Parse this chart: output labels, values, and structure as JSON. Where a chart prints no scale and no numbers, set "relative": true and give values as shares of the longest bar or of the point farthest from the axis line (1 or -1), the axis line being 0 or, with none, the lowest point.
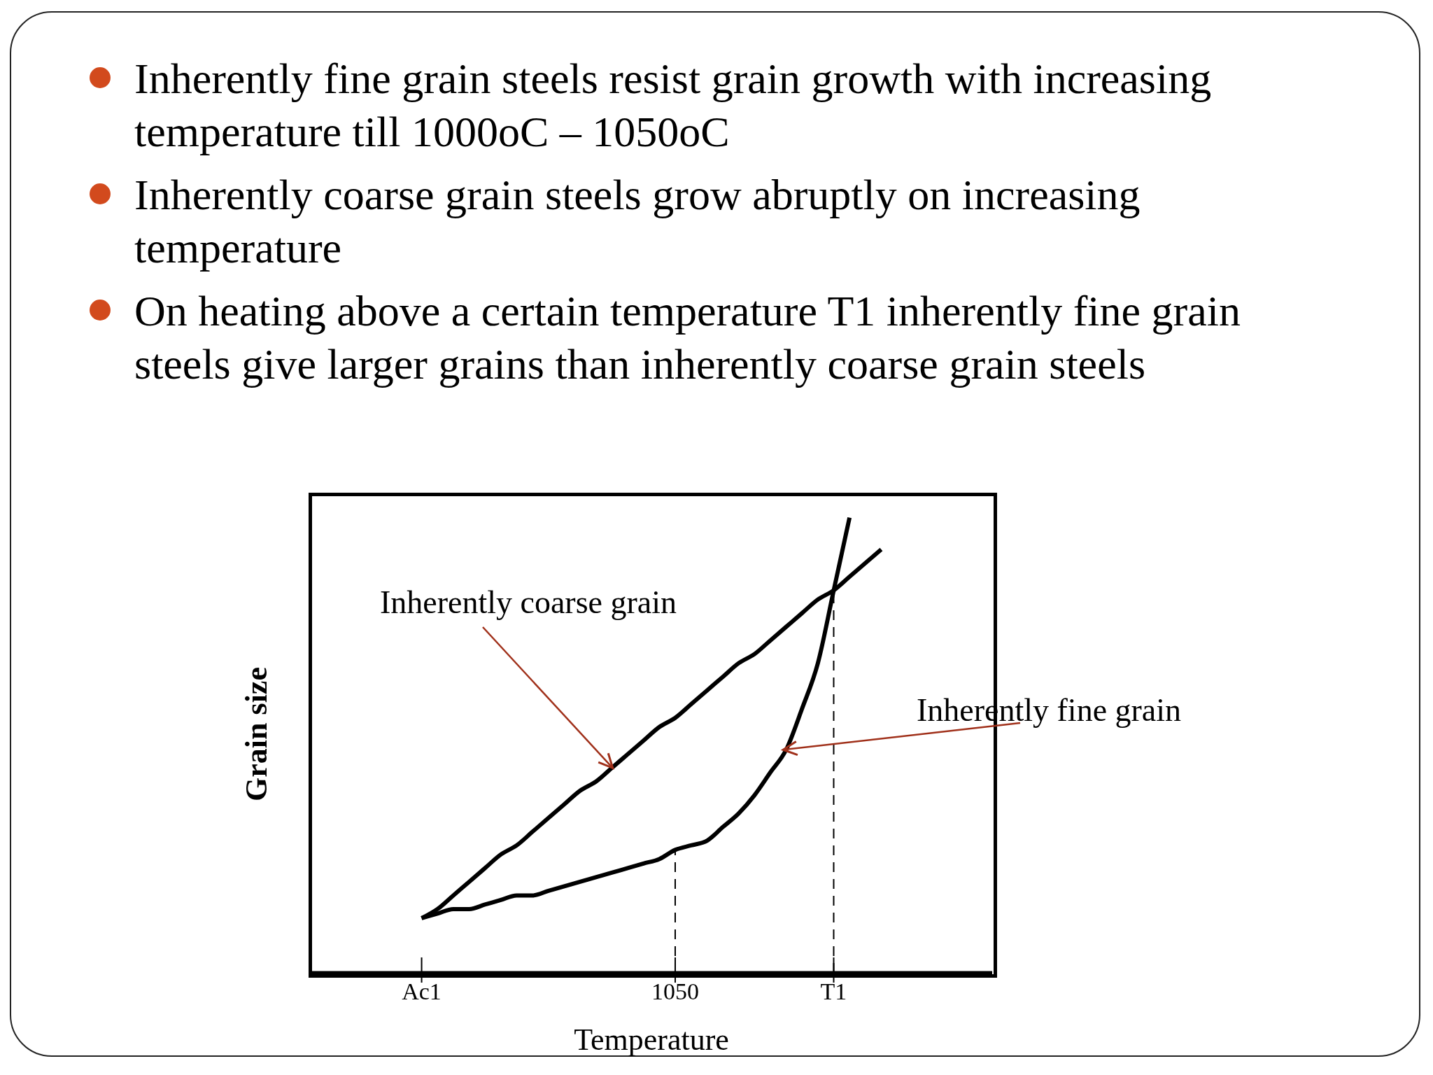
{
  "chart_data": {
    "type": "line",
    "relative": true,
    "annotations": [
      "Inherently fine grain steels resist grain growth with increasing temperature till 1000oC – 1050oC",
      "Inherently coarse grain steels grow abruptly on increasing temperature",
      "On heating above a certain temperature T1 inherently fine grain steels give larger grains than inherently coarse grain steels"
    ],
    "xlabel": "Temperature",
    "ylabel": "Grain size",
    "categories": [
      null,
      null,
      null,
      null,
      null,
      null,
      null,
      "Ac1",
      null,
      null,
      null,
      null,
      null,
      null,
      null,
      null,
      null,
      null,
      null,
      null,
      null,
      null,
      null,
      "1050",
      null,
      null,
      null,
      null,
      null,
      null,
      null,
      null,
      null,
      "T1",
      null,
      null,
      null,
      null,
      null,
      null,
      null,
      null,
      null,
      null
    ],
    "series": [
      {
        "name": "Inherently coarse grain",
        "color": "#000000",
        "values": [
          null,
          null,
          null,
          null,
          null,
          null,
          null,
          0.12,
          0.14,
          0.17,
          0.2,
          0.23,
          0.26,
          0.28,
          0.31,
          0.34,
          0.37,
          0.4,
          0.42,
          0.45,
          0.48,
          0.51,
          0.54,
          0.56,
          0.59,
          0.62,
          0.65,
          0.68,
          0.7,
          0.73,
          0.76,
          0.79,
          0.82,
          0.84,
          0.87,
          0.9,
          0.93,
          null,
          null,
          null,
          null,
          null,
          null,
          null
        ]
      },
      {
        "name": "Inherently fine grain",
        "color": "#000000",
        "values": [
          null,
          null,
          null,
          null,
          null,
          null,
          null,
          0.12,
          0.13,
          0.14,
          0.14,
          0.15,
          0.16,
          0.17,
          0.17,
          0.18,
          0.19,
          0.2,
          0.21,
          0.22,
          0.23,
          0.24,
          0.25,
          0.27,
          0.28,
          0.29,
          0.32,
          0.35,
          0.39,
          0.44,
          0.49,
          0.58,
          0.68,
          0.84,
          1.0,
          null,
          null,
          null,
          null,
          null,
          null,
          null,
          null,
          null
        ]
      }
    ],
    "ref_lines": [
      {
        "axis": "x",
        "value": "1050",
        "line_style": "dashed",
        "color": "#000000"
      },
      {
        "axis": "x",
        "value": "T1",
        "line_style": "dashed",
        "color": "#000000"
      }
    ]
  }
}
